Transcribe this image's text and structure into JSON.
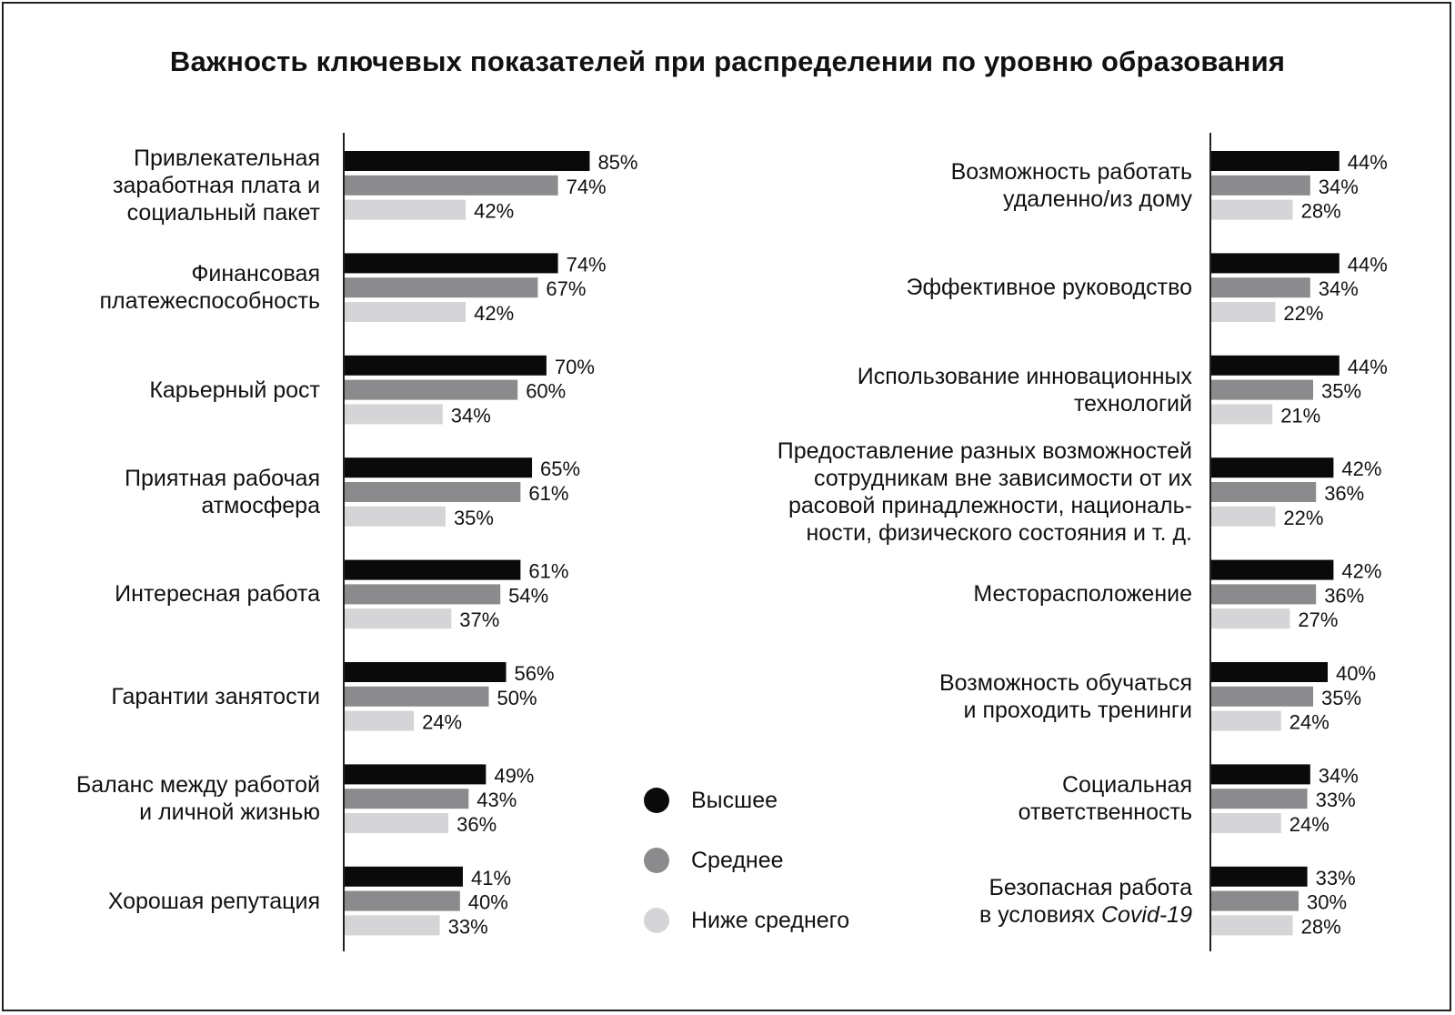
{
  "chart_data": {
    "type": "bar",
    "orientation": "horizontal",
    "title": "Важность ключевых показателей при распределении по уровню образования",
    "series_names": [
      "Высшее",
      "Среднее",
      "Ниже среднего"
    ],
    "series_colors": [
      "#0a0a0a",
      "#8b8b8d",
      "#d5d5d7"
    ],
    "legend_placement": "center-bottom",
    "value_suffix": "%",
    "left_panel": {
      "categories": [
        "Привлекательная заработная плата и социальный пакет",
        "Финансовая платежеспособность",
        "Карьерный рост",
        "Приятная рабочая атмосфера",
        "Интересная работа",
        "Гарантии занятости",
        "Баланс между работой и личной жизнью",
        "Хорошая репутация"
      ],
      "label_lines": [
        [
          "Привлекательная",
          "заработная плата и",
          "социальный пакет"
        ],
        [
          "Финансовая",
          "платежеспособность"
        ],
        [
          "Карьерный рост"
        ],
        [
          "Приятная рабочая",
          "атмосфера"
        ],
        [
          "Интересная работа"
        ],
        [
          "Гарантии занятости"
        ],
        [
          "Баланс между работой",
          "и личной жизнью"
        ],
        [
          "Хорошая репутация"
        ]
      ],
      "values": [
        [
          85,
          74,
          42
        ],
        [
          74,
          67,
          42
        ],
        [
          70,
          60,
          34
        ],
        [
          65,
          61,
          35
        ],
        [
          61,
          54,
          37
        ],
        [
          56,
          50,
          24
        ],
        [
          49,
          43,
          36
        ],
        [
          41,
          40,
          33
        ]
      ]
    },
    "right_panel": {
      "categories": [
        "Возможность работать удаленно/из дому",
        "Эффективное руководство",
        "Использование инновационных технологий",
        "Предоставление разных возможностей сотрудникам вне зависимости от их расовой принадлежности, национальности, физического состояния и т. д.",
        "Месторасположение",
        "Возможность обучаться и проходить тренинги",
        "Социальная ответственность",
        "Безопасная работа в условиях Covid-19"
      ],
      "label_lines": [
        [
          "Возможность работать",
          "удаленно/из дому"
        ],
        [
          "Эффективное руководство"
        ],
        [
          "Использование инновационных",
          "технологий"
        ],
        [
          "Предоставление разных возможностей",
          "сотрудникам вне зависимости от их",
          "расовой принадлежности, националь-",
          "ности, физического состояния и т. д."
        ],
        [
          "Месторасположение"
        ],
        [
          "Возможность обучаться",
          "и проходить тренинги"
        ],
        [
          "Социальная",
          "ответственность"
        ],
        [
          "Безопасная работа",
          "в условиях Covid-19"
        ]
      ],
      "values": [
        [
          44,
          34,
          28
        ],
        [
          44,
          34,
          22
        ],
        [
          44,
          35,
          21
        ],
        [
          42,
          36,
          22
        ],
        [
          42,
          36,
          27
        ],
        [
          40,
          35,
          24
        ],
        [
          34,
          33,
          24
        ],
        [
          33,
          30,
          28
        ]
      ]
    }
  }
}
